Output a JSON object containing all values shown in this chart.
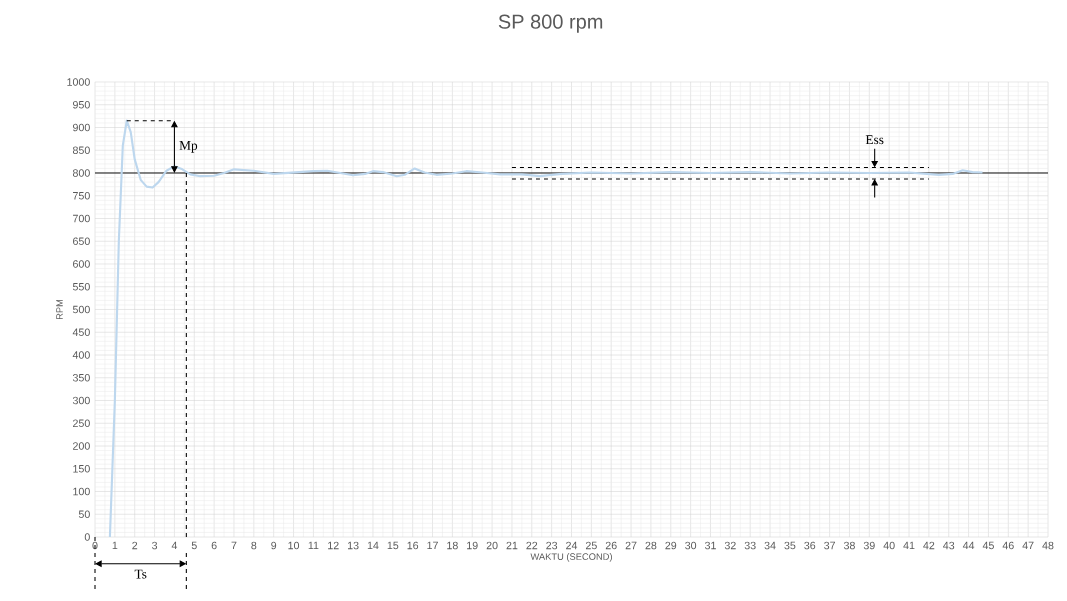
{
  "chart_data": {
    "type": "line",
    "title": "SP 800 rpm",
    "xlabel": "WAKTU (SECOND)",
    "ylabel": "RPM",
    "x": [
      0.75,
      1.0,
      1.2,
      1.4,
      1.6,
      1.8,
      2.0,
      2.3,
      2.6,
      2.9,
      3.2,
      3.6,
      4.0,
      4.4,
      4.8,
      5.3,
      6.0,
      6.5,
      7.0,
      8.0,
      9.0,
      10.0,
      11.0,
      11.7,
      12.5,
      13.0,
      13.6,
      14.0,
      14.5,
      15.2,
      15.6,
      16.1,
      16.6,
      17.2,
      18.0,
      18.7,
      19.5,
      20.4,
      21.5,
      22.4,
      23.5,
      25,
      27,
      29,
      31,
      33,
      35,
      37,
      39,
      41,
      42.5,
      43.2,
      43.7,
      44.2,
      44.7
    ],
    "series": [
      {
        "color": "#bdd7ee",
        "values": [
          0,
          300,
          650,
          860,
          915,
          890,
          830,
          785,
          770,
          768,
          780,
          805,
          815,
          808,
          797,
          793,
          794,
          800,
          808,
          805,
          798,
          801,
          804,
          805,
          799,
          795,
          798,
          804,
          802,
          793,
          796,
          810,
          801,
          796,
          799,
          804,
          801,
          797,
          797,
          793,
          798,
          801,
          799,
          802,
          800,
          802,
          799,
          801,
          800,
          801,
          796,
          798,
          806,
          802,
          801
        ]
      },
      {
        "type": "line",
        "color": "#000000",
        "line_style": "dashed",
        "x": [
          1.6,
          4
        ],
        "values": [
          915,
          915
        ]
      },
      {
        "type": "line",
        "color": "#000000",
        "line_style": "dashed",
        "x": [
          4.6,
          4.6
        ],
        "values": [
          800,
          0
        ]
      },
      {
        "type": "line",
        "color": "#000000",
        "line_style": "dashed",
        "x": [
          21,
          42
        ],
        "values": [
          812,
          812
        ]
      },
      {
        "type": "line",
        "color": "#000000",
        "line_style": "dashed",
        "x": [
          21,
          42
        ],
        "values": [
          787,
          787
        ]
      }
    ],
    "xlim": [
      0,
      48
    ],
    "xticks": [
      0,
      1,
      2,
      3,
      4,
      5,
      6,
      7,
      8,
      9,
      10,
      11,
      12,
      13,
      14,
      15,
      16,
      17,
      18,
      19,
      20,
      21,
      22,
      23,
      24,
      25,
      26,
      27,
      28,
      29,
      30,
      31,
      32,
      33,
      34,
      35,
      36,
      37,
      38,
      39,
      40,
      41,
      42,
      43,
      44,
      45,
      46,
      47,
      48
    ],
    "ylim": [
      0,
      1000
    ],
    "yticks": [
      0,
      50,
      100,
      150,
      200,
      250,
      300,
      350,
      400,
      450,
      500,
      550,
      600,
      650,
      700,
      750,
      800,
      850,
      900,
      950,
      1000
    ],
    "grid": true,
    "marker": "none",
    "line_style": "solid",
    "ref_lines": [
      {
        "axis": "y",
        "value": 800,
        "color": "#000000"
      }
    ],
    "annotations": [
      "Mp",
      "Ts",
      "Ess"
    ]
  }
}
